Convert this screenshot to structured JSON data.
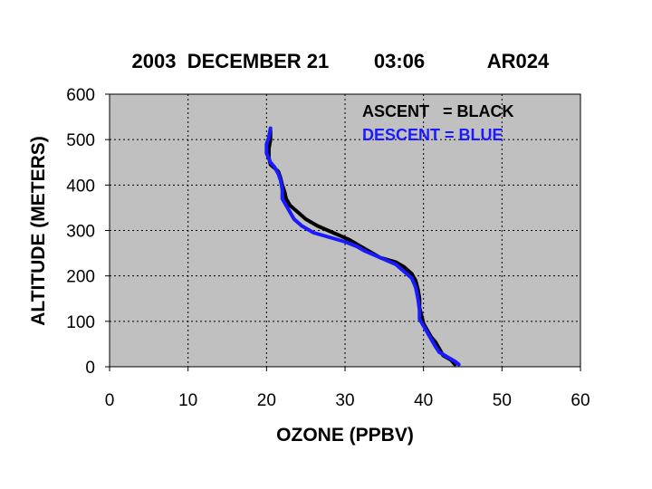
{
  "title_parts": [
    "2003",
    "DECEMBER 21",
    "03:06",
    "AR024"
  ],
  "colors": {
    "plot_bg": "#c0c0c0",
    "ascent": "#000000",
    "descent": "#1a1aff",
    "grid": "#000000"
  },
  "chart_data": {
    "type": "line",
    "xlabel": "OZONE (PPBV)",
    "ylabel": "ALTITUDE (METERS)",
    "xlim": [
      0,
      60
    ],
    "ylim": [
      0,
      600
    ],
    "xticks": [
      0,
      10,
      20,
      30,
      40,
      50,
      60
    ],
    "yticks": [
      0,
      100,
      200,
      300,
      400,
      500,
      600
    ],
    "grid": true,
    "legend_position": "top-right",
    "legend": [
      "ASCENT   = BLACK",
      "DESCENT = BLUE"
    ],
    "series": [
      {
        "color": "black",
        "points": [
          [
            44.0,
            5
          ],
          [
            43.5,
            15
          ],
          [
            42.5,
            25
          ],
          [
            42.0,
            40
          ],
          [
            41.5,
            55
          ],
          [
            41.0,
            65
          ],
          [
            40.5,
            80
          ],
          [
            40.0,
            95
          ],
          [
            39.8,
            110
          ],
          [
            39.5,
            130
          ],
          [
            39.5,
            150
          ],
          [
            39.3,
            170
          ],
          [
            39.0,
            190
          ],
          [
            38.5,
            205
          ],
          [
            37.5,
            220
          ],
          [
            36.5,
            230
          ],
          [
            34.5,
            240
          ],
          [
            33.0,
            255
          ],
          [
            32.0,
            265
          ],
          [
            30.5,
            280
          ],
          [
            28.5,
            295
          ],
          [
            26.5,
            310
          ],
          [
            25.0,
            325
          ],
          [
            24.0,
            340
          ],
          [
            23.0,
            355
          ],
          [
            22.5,
            370
          ],
          [
            22.3,
            385
          ],
          [
            22.0,
            400
          ],
          [
            21.8,
            415
          ],
          [
            21.5,
            430
          ],
          [
            20.5,
            445
          ],
          [
            20.3,
            460
          ],
          [
            20.3,
            480
          ],
          [
            20.5,
            500
          ],
          [
            20.5,
            520
          ]
        ]
      },
      {
        "color": "blue",
        "points": [
          [
            44.5,
            5
          ],
          [
            44.0,
            12
          ],
          [
            43.0,
            22
          ],
          [
            42.0,
            32
          ],
          [
            41.5,
            45
          ],
          [
            41.0,
            60
          ],
          [
            40.5,
            75
          ],
          [
            40.0,
            90
          ],
          [
            39.5,
            105
          ],
          [
            39.5,
            125
          ],
          [
            39.3,
            150
          ],
          [
            39.0,
            175
          ],
          [
            38.5,
            195
          ],
          [
            37.5,
            210
          ],
          [
            36.5,
            225
          ],
          [
            34.5,
            240
          ],
          [
            32.5,
            255
          ],
          [
            31.5,
            265
          ],
          [
            30.0,
            275
          ],
          [
            28.0,
            285
          ],
          [
            26.0,
            295
          ],
          [
            24.5,
            310
          ],
          [
            23.5,
            325
          ],
          [
            23.0,
            340
          ],
          [
            22.5,
            355
          ],
          [
            22.0,
            370
          ],
          [
            22.0,
            390
          ],
          [
            21.8,
            410
          ],
          [
            21.5,
            425
          ],
          [
            21.0,
            440
          ],
          [
            20.5,
            450
          ],
          [
            20.0,
            470
          ],
          [
            20.0,
            490
          ],
          [
            20.3,
            505
          ],
          [
            20.5,
            525
          ]
        ]
      }
    ]
  }
}
